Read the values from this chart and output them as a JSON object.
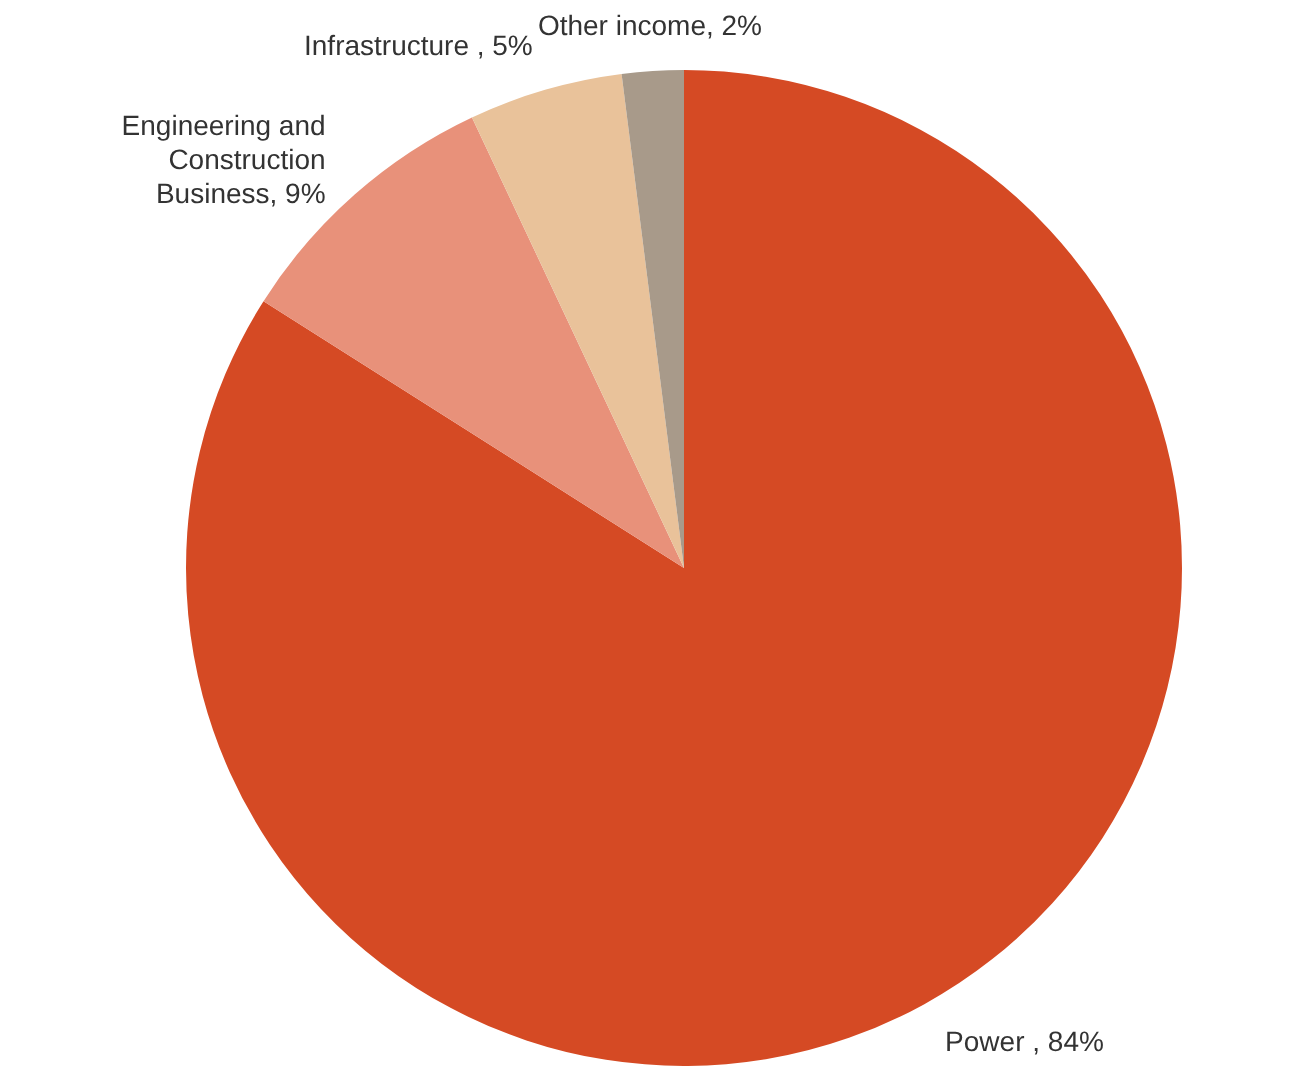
{
  "chart_data": {
    "type": "pie",
    "categories": [
      "Power ",
      "Engineering and Construction Business",
      "Infrastructure ",
      "Other income"
    ],
    "values": [
      84,
      9,
      5,
      2
    ],
    "value_labels": [
      "84%",
      "9%",
      "5%",
      "2%"
    ],
    "colors": [
      "#d54a24",
      "#e8917a",
      "#e9c29a",
      "#a89a8a"
    ],
    "legend": false
  }
}
